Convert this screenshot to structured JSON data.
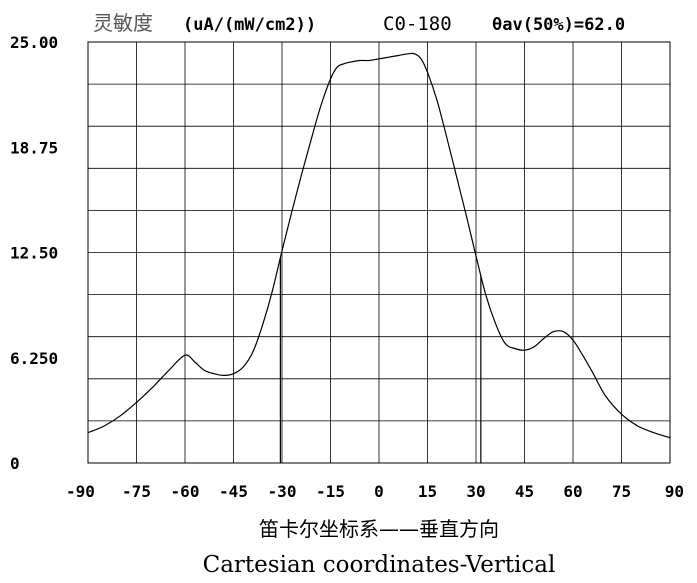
{
  "chart_data": {
    "type": "line",
    "title_cn": "灵敏度",
    "title_unit": "(uA/(mW/cm2))",
    "title_plane": "C0-180",
    "title_theta": "θav(50%)=62.0",
    "caption_cn": "笛卡尔坐标系——垂直方向",
    "caption_en": "Cartesian coordinates-Vertical",
    "xlim": [
      -90,
      90
    ],
    "ylim": [
      0,
      25
    ],
    "x_ticks": [
      -90,
      -75,
      -60,
      -45,
      -30,
      -15,
      0,
      15,
      30,
      45,
      60,
      75,
      90
    ],
    "x_tick_labels": [
      "-90",
      "-75",
      "-60",
      "-45",
      "-30",
      "-15",
      "0",
      "15",
      "30",
      "45",
      "60",
      "75",
      "90"
    ],
    "y_ticks": [
      0,
      6.25,
      12.5,
      18.75,
      25
    ],
    "y_tick_labels": [
      "0",
      "6.250",
      "12.50",
      "18.75",
      "25.00"
    ],
    "grid": true,
    "grid_x_divisions": 12,
    "grid_y_divisions": 10,
    "half_max_markers": [
      -30.5,
      31.5
    ],
    "series": [
      {
        "x": [
          -90,
          -85,
          -80,
          -75,
          -70,
          -65,
          -60,
          -57,
          -54,
          -51,
          -48,
          -45,
          -42,
          -39,
          -36,
          -33,
          -30,
          -27,
          -24,
          -21,
          -18,
          -15,
          -13,
          -11,
          -9,
          -6,
          -3,
          0,
          3,
          6,
          9,
          11,
          13,
          15,
          18,
          21,
          24,
          27,
          30,
          33,
          36,
          39,
          42,
          45,
          48,
          51,
          54,
          57,
          60,
          63,
          66,
          70,
          75,
          80,
          85,
          90
        ],
        "y": [
          1.8,
          2.2,
          2.8,
          3.6,
          4.5,
          5.5,
          6.4,
          6.0,
          5.5,
          5.3,
          5.2,
          5.3,
          5.7,
          6.6,
          8.2,
          10.2,
          12.6,
          14.9,
          17.1,
          19.2,
          21.2,
          22.8,
          23.5,
          23.7,
          23.8,
          23.9,
          23.9,
          24.0,
          24.1,
          24.2,
          24.3,
          24.3,
          24.0,
          23.2,
          21.5,
          19.3,
          17.0,
          14.7,
          12.3,
          10.0,
          8.3,
          7.1,
          6.8,
          6.7,
          6.9,
          7.4,
          7.8,
          7.8,
          7.3,
          6.4,
          5.4,
          4.0,
          2.9,
          2.2,
          1.8,
          1.5
        ]
      }
    ]
  }
}
